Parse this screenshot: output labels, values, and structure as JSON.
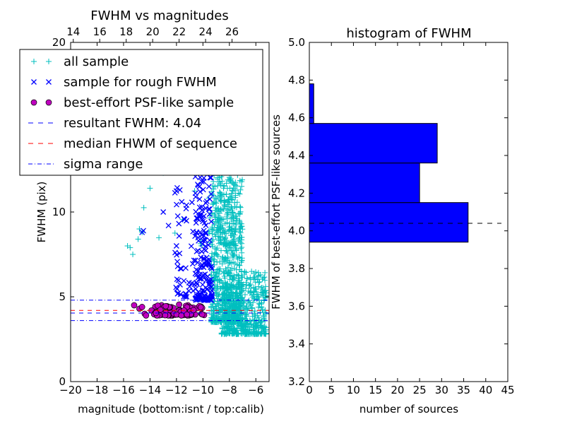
{
  "chart_data": [
    {
      "type": "scatter",
      "title": "FWHM vs magnitudes",
      "xlabel": "magnitude (bottom:isnt / top:calib)",
      "ylabel": "FWHM (pix)",
      "xlim": [
        -20,
        -5
      ],
      "ylim": [
        0,
        20
      ],
      "x_ticks": [
        -20,
        -18,
        -16,
        -14,
        -12,
        -10,
        -8,
        -6
      ],
      "x_tick_labels": [
        "−20",
        "−18",
        "−16",
        "−14",
        "−12",
        "−10",
        "−8",
        "−6"
      ],
      "y_ticks": [
        0,
        5,
        10,
        20
      ],
      "y_tick_labels": [
        "0",
        "5",
        "10",
        "20"
      ],
      "top_ticks": [
        14,
        16,
        18,
        20,
        22,
        24,
        26
      ],
      "top_tick_labels": [
        "14",
        "16",
        "18",
        "20",
        "22",
        "24",
        "26"
      ],
      "top_offset": 33.8,
      "legend_placement": "upper-left",
      "colors": {
        "all": "#00bfbf",
        "rough": "#0000ff",
        "best": "#bf00bf",
        "resultant": "#0000ff",
        "median": "#ff0000",
        "sigma": "#0000ff"
      },
      "series": [
        {
          "name": "all sample",
          "marker": "+",
          "clusters": [
            {
              "x": [
                -9.4,
                -7.0
              ],
              "y": [
                3.5,
                12.5
              ],
              "n": 700
            },
            {
              "x": [
                -8.6,
                -5.2
              ],
              "y": [
                2.8,
                6.5
              ],
              "n": 500
            },
            {
              "x": [
                -9.6,
                -7.5
              ],
              "y": [
                8.0,
                19.5
              ],
              "n": 160
            },
            {
              "x": [
                -14.5,
                -10.0
              ],
              "y": [
                8.0,
                19.8
              ],
              "n": 14
            }
          ],
          "points": [
            [
              -15.7,
              8.0
            ],
            [
              -15.5,
              7.9
            ],
            [
              -15.3,
              7.5
            ],
            [
              -14.9,
              8.4
            ],
            [
              -14.8,
              9.0
            ],
            [
              -14.6,
              8.8
            ],
            [
              -14.0,
              11.4
            ],
            [
              -13.0,
              12.3
            ]
          ]
        },
        {
          "name": "sample for rough FWHM",
          "marker": "x",
          "clusters": [
            {
              "x": [
                -10.6,
                -9.3
              ],
              "y": [
                4.8,
                13.5
              ],
              "n": 180
            },
            {
              "x": [
                -12.2,
                -10.6
              ],
              "y": [
                5.0,
                12.0
              ],
              "n": 45
            }
          ],
          "points": [
            [
              -14.6,
              8.8
            ],
            [
              -14.5,
              8.9
            ],
            [
              -13.0,
              10.0
            ],
            [
              -12.6,
              9.2
            ],
            [
              -12.0,
              8.0
            ],
            [
              -11.3,
              6.7
            ],
            [
              -11.0,
              5.6
            ]
          ]
        },
        {
          "name": "best-effort PSF-like sample",
          "marker": "o",
          "clusters": [
            {
              "x": [
                -13.9,
                -9.9
              ],
              "y": [
                3.9,
                4.55
              ],
              "n": 80
            }
          ],
          "points": [
            [
              -15.2,
              4.5
            ],
            [
              -14.8,
              4.3
            ],
            [
              -14.6,
              4.4
            ],
            [
              -14.4,
              4.0
            ],
            [
              -14.3,
              3.9
            ]
          ]
        },
        {
          "name": "resultant FWHM: 4.04",
          "line": "dashed",
          "y": 4.04
        },
        {
          "name": "median FHWM of sequence",
          "line": "dashed",
          "y": 4.2
        },
        {
          "name": "sigma range",
          "line": "dashdot",
          "y": [
            3.6,
            4.8
          ]
        }
      ]
    },
    {
      "type": "bar",
      "orientation": "horizontal",
      "title": "histogram of FWHM",
      "xlabel": "number of sources",
      "ylabel": "FWHM of best-effort PSF-like sources",
      "xlim": [
        0,
        45
      ],
      "ylim": [
        3.2,
        5.0
      ],
      "x_ticks": [
        0,
        5,
        10,
        15,
        20,
        25,
        30,
        35,
        40,
        45
      ],
      "y_ticks": [
        3.2,
        3.4,
        3.6,
        3.8,
        4.0,
        4.2,
        4.4,
        4.6,
        4.8,
        5.0
      ],
      "bar_color": "#0000ff",
      "bins": [
        {
          "from": 3.94,
          "to": 4.15,
          "count": 36
        },
        {
          "from": 4.15,
          "to": 4.36,
          "count": 25
        },
        {
          "from": 4.36,
          "to": 4.57,
          "count": 29
        },
        {
          "from": 4.57,
          "to": 4.78,
          "count": 1
        }
      ],
      "reference_line": {
        "y": 4.04,
        "style": "dashed"
      }
    }
  ]
}
